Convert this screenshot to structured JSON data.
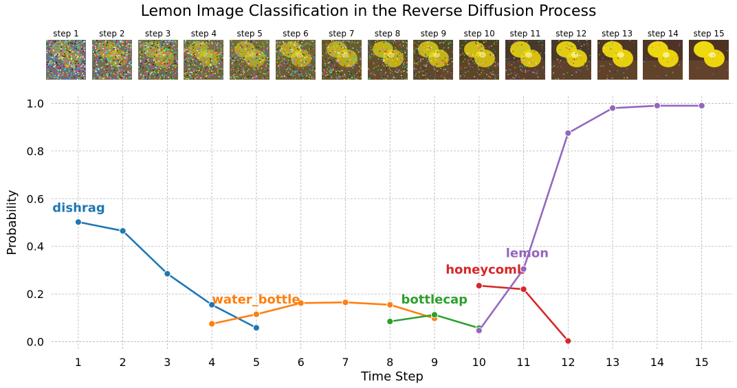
{
  "title": "Lemon Image Classification in the Reverse Diffusion Process",
  "thumbnails": [
    {
      "label": "step 1",
      "noise": 0.95,
      "bg": "#6f6f6f"
    },
    {
      "label": "step 2",
      "noise": 0.88,
      "bg": "#727056"
    },
    {
      "label": "step 3",
      "noise": 0.8,
      "bg": "#74704a"
    },
    {
      "label": "step 4",
      "noise": 0.72,
      "bg": "#75703f"
    },
    {
      "label": "step 5",
      "noise": 0.65,
      "bg": "#736c38"
    },
    {
      "label": "step 6",
      "noise": 0.57,
      "bg": "#6e6530"
    },
    {
      "label": "step 7",
      "noise": 0.5,
      "bg": "#665d2c"
    },
    {
      "label": "step 8",
      "noise": 0.42,
      "bg": "#5e5228"
    },
    {
      "label": "step 9",
      "noise": 0.35,
      "bg": "#574a25"
    },
    {
      "label": "step 10",
      "noise": 0.28,
      "bg": "#4e4022"
    },
    {
      "label": "step 11",
      "noise": 0.2,
      "bg": "#47382a"
    },
    {
      "label": "step 12",
      "noise": 0.14,
      "bg": "#4a3828"
    },
    {
      "label": "step 13",
      "noise": 0.08,
      "bg": "#4d3626"
    },
    {
      "label": "step 14",
      "noise": 0.04,
      "bg": "#4e3424"
    },
    {
      "label": "step 15",
      "noise": 0.02,
      "bg": "#4d3222"
    }
  ],
  "chart_data": {
    "type": "line",
    "title": "",
    "xlabel": "Time Step",
    "ylabel": "Probability",
    "xlim": [
      0.4,
      15.7
    ],
    "ylim": [
      -0.03,
      1.03
    ],
    "x_ticks": [
      1,
      2,
      3,
      4,
      5,
      6,
      7,
      8,
      9,
      10,
      11,
      12,
      13,
      14,
      15
    ],
    "y_ticks": [
      0.0,
      0.2,
      0.4,
      0.6,
      0.8,
      1.0
    ],
    "y_tick_labels": [
      "0.0",
      "0.2",
      "0.4",
      "0.6",
      "0.8",
      "1.0"
    ],
    "grid": true,
    "series": [
      {
        "name": "dishrag",
        "color": "#1f77b4",
        "x": [
          1,
          2,
          3,
          4,
          5
        ],
        "y": [
          0.502,
          0.465,
          0.285,
          0.155,
          0.058
        ],
        "label_x": 0.42,
        "label_y": 0.545
      },
      {
        "name": "water_bottle",
        "color": "#ff7f0e",
        "x": [
          4,
          5,
          6,
          7,
          8,
          9
        ],
        "y": [
          0.075,
          0.115,
          0.162,
          0.165,
          0.155,
          0.098
        ],
        "label_x": 4.0,
        "label_y": 0.16
      },
      {
        "name": "bottlecap",
        "color": "#2ca02c",
        "x": [
          8,
          9,
          10
        ],
        "y": [
          0.085,
          0.113,
          0.057
        ],
        "label_x": 8.25,
        "label_y": 0.16
      },
      {
        "name": "honeycomb",
        "color": "#d62728",
        "x": [
          10,
          11,
          12
        ],
        "y": [
          0.235,
          0.22,
          0.003
        ],
        "label_x": 9.25,
        "label_y": 0.285
      },
      {
        "name": "lemon",
        "color": "#9467bd",
        "x": [
          10,
          11,
          12,
          13,
          14,
          15
        ],
        "y": [
          0.047,
          0.305,
          0.875,
          0.98,
          0.99,
          0.99
        ],
        "label_x": 10.6,
        "label_y": 0.355
      }
    ]
  }
}
